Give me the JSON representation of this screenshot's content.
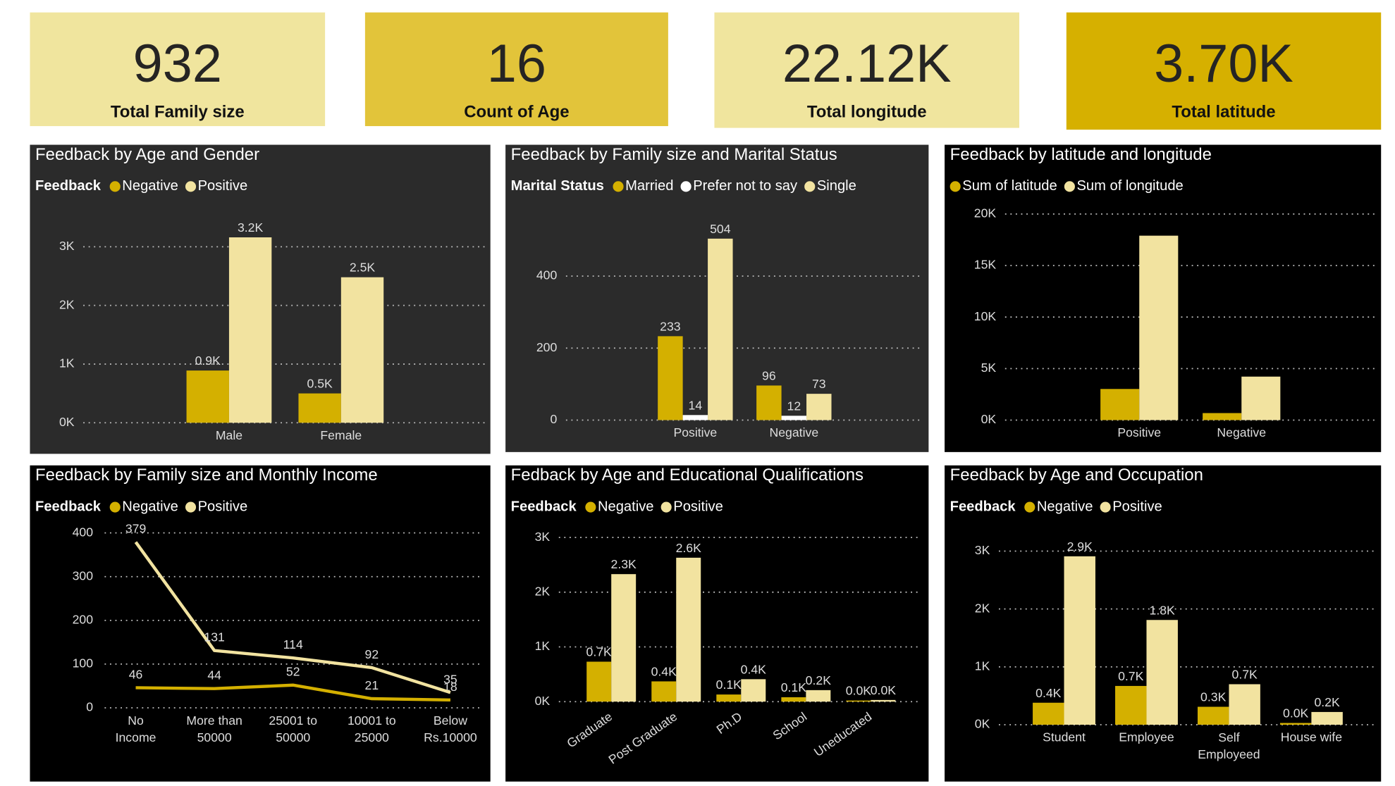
{
  "cards": [
    {
      "value": "932",
      "label": "Total Family size"
    },
    {
      "value": "16",
      "label": "Count of Age"
    },
    {
      "value": "22.12K",
      "label": "Total longitude"
    },
    {
      "value": "3.70K",
      "label": "Total latitude"
    }
  ],
  "chart_data": [
    {
      "type": "bar",
      "title": "Feedback by Age and Gender",
      "legend_title": "Feedback",
      "categories": [
        "Male",
        "Female"
      ],
      "series": [
        {
          "name": "Negative",
          "color": "#d4b000",
          "values": [
            890,
            500
          ],
          "value_labels": [
            "0.9K",
            "0.5K"
          ]
        },
        {
          "name": "Positive",
          "color": "#f2e3a0",
          "values": [
            3160,
            2480
          ],
          "value_labels": [
            "3.2K",
            "2.5K"
          ]
        }
      ],
      "ylim": [
        0,
        3300
      ],
      "yticks": [
        {
          "value": 0,
          "label": "0K"
        },
        {
          "value": 1000,
          "label": "1K"
        },
        {
          "value": 2000,
          "label": "2K"
        },
        {
          "value": 3000,
          "label": "3K"
        }
      ],
      "grid": true
    },
    {
      "type": "bar",
      "title": "Feedback by Family size and Marital Status",
      "legend_title": "Marital Status",
      "categories": [
        "Positive",
        "Negative"
      ],
      "series": [
        {
          "name": "Married",
          "color": "#d4b000",
          "values": [
            233,
            96
          ]
        },
        {
          "name": "Prefer not to say",
          "color": "#ffffff",
          "values": [
            14,
            12
          ]
        },
        {
          "name": "Single",
          "color": "#f2e3a0",
          "values": [
            504,
            73
          ]
        }
      ],
      "data_labels": true,
      "ylim": [
        0,
        560
      ],
      "yticks": [
        0,
        200,
        400
      ],
      "grid": true
    },
    {
      "type": "bar",
      "title": "Feedback by latitude and longitude",
      "categories": [
        "Positive",
        "Negative"
      ],
      "series": [
        {
          "name": "Sum of latitude",
          "color": "#d4b000",
          "values": [
            3020,
            680
          ]
        },
        {
          "name": "Sum of longitude",
          "color": "#f2e3a0",
          "values": [
            17900,
            4220
          ]
        }
      ],
      "ylim": [
        0,
        20000
      ],
      "yticks": [
        {
          "value": 0,
          "label": "0K"
        },
        {
          "value": 5000,
          "label": "5K"
        },
        {
          "value": 10000,
          "label": "10K"
        },
        {
          "value": 15000,
          "label": "15K"
        },
        {
          "value": 20000,
          "label": "20K"
        }
      ],
      "grid": true
    },
    {
      "type": "line",
      "title": "Feedback by Family size and Monthly Income",
      "legend_title": "Feedback",
      "categories": [
        "No Income",
        "More than 50000",
        "25001 to 50000",
        "10001 to 25000",
        "Below Rs.10000"
      ],
      "series": [
        {
          "name": "Negative",
          "color": "#d4b000",
          "values": [
            46,
            44,
            52,
            21,
            18
          ]
        },
        {
          "name": "Positive",
          "color": "#f2e3a0",
          "values": [
            379,
            131,
            114,
            92,
            35
          ]
        }
      ],
      "data_labels": true,
      "ylim": [
        0,
        400
      ],
      "yticks": [
        0,
        100,
        200,
        300,
        400
      ],
      "grid": true
    },
    {
      "type": "bar",
      "title": "Fedback by Age and Educational Qualifications",
      "legend_title": "Feedback",
      "categories": [
        "Graduate",
        "Post Graduate",
        "Ph.D",
        "School",
        "Uneducated"
      ],
      "series": [
        {
          "name": "Negative",
          "color": "#d4b000",
          "values": [
            730,
            370,
            130,
            80,
            20
          ],
          "value_labels": [
            "0.7K",
            "0.4K",
            "0.1K",
            "0.1K",
            "0.0K"
          ]
        },
        {
          "name": "Positive",
          "color": "#f2e3a0",
          "values": [
            2330,
            2630,
            410,
            210,
            30
          ],
          "value_labels": [
            "2.3K",
            "2.6K",
            "0.4K",
            "0.2K",
            "0.0K"
          ]
        }
      ],
      "ylim": [
        0,
        3100
      ],
      "yticks": [
        {
          "value": 0,
          "label": "0K"
        },
        {
          "value": 1000,
          "label": "1K"
        },
        {
          "value": 2000,
          "label": "2K"
        },
        {
          "value": 3000,
          "label": "3K"
        }
      ],
      "grid": true
    },
    {
      "type": "bar",
      "title": "Feedback by Age and Occupation",
      "legend_title": "Feedback",
      "categories": [
        "Student",
        "Employee",
        "Self Employeed",
        "House wife"
      ],
      "series": [
        {
          "name": "Negative",
          "color": "#d4b000",
          "values": [
            380,
            670,
            310,
            30
          ],
          "value_labels": [
            "0.4K",
            "0.7K",
            "0.3K",
            "0.0K"
          ]
        },
        {
          "name": "Positive",
          "color": "#f2e3a0",
          "values": [
            2910,
            1810,
            700,
            220
          ],
          "value_labels": [
            "2.9K",
            "1.8K",
            "0.7K",
            "0.2K"
          ]
        }
      ],
      "ylim": [
        0,
        3100
      ],
      "yticks": [
        {
          "value": 0,
          "label": "0K"
        },
        {
          "value": 1000,
          "label": "1K"
        },
        {
          "value": 2000,
          "label": "2K"
        },
        {
          "value": 3000,
          "label": "3K"
        }
      ],
      "grid": true
    }
  ]
}
